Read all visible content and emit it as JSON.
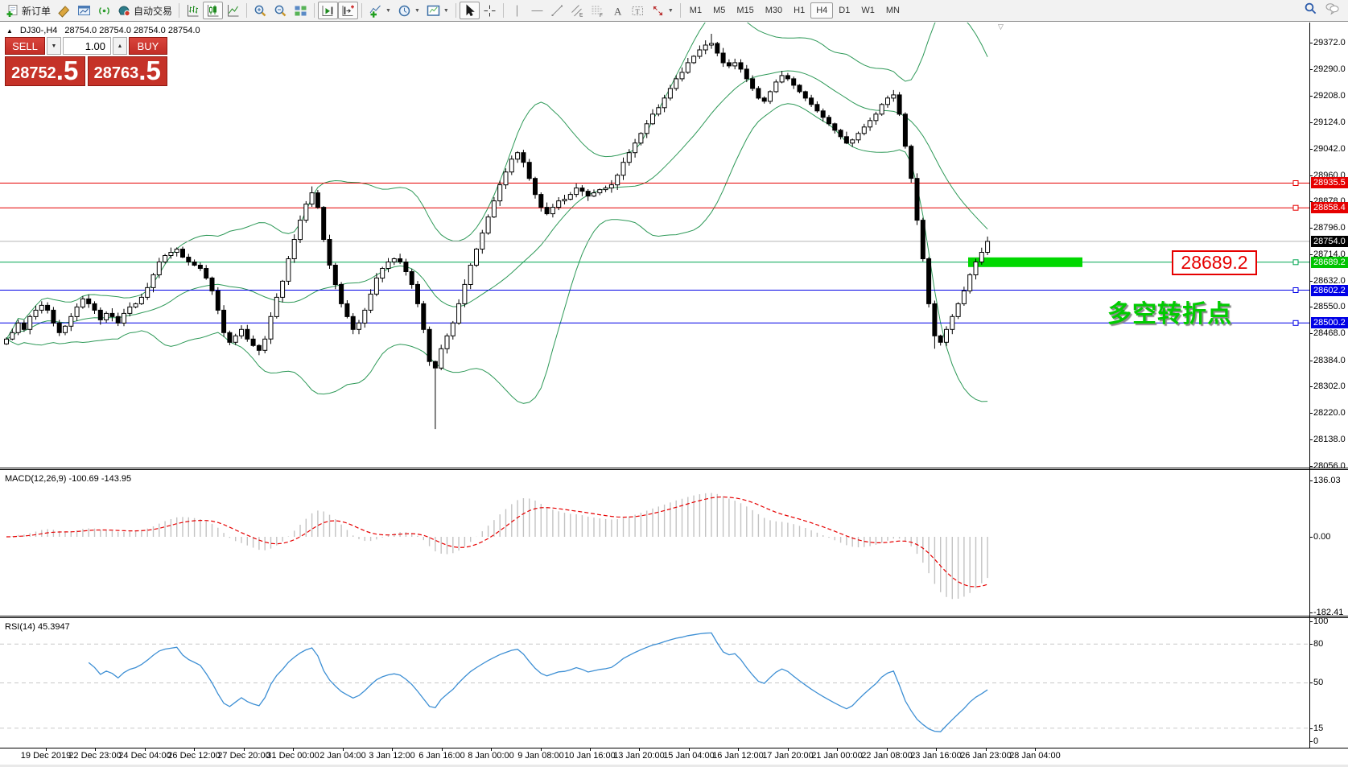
{
  "toolbar": {
    "groups": [
      {
        "items": [
          {
            "name": "new-order",
            "icon": "new-order-icon",
            "label": "新订单"
          },
          {
            "name": "styler",
            "icon": "crayon-icon"
          },
          {
            "name": "profiles",
            "icon": "chart-window-icon"
          },
          {
            "name": "signals",
            "icon": "signal-icon"
          },
          {
            "name": "auto-trading",
            "icon": "autotrade-icon",
            "label": "自动交易"
          }
        ]
      },
      {
        "items": [
          {
            "name": "bar-chart",
            "icon": "bars-icon"
          },
          {
            "name": "candlestick-chart",
            "icon": "candles-icon",
            "pressed": true
          },
          {
            "name": "line-chart",
            "icon": "line-icon"
          }
        ]
      },
      {
        "items": [
          {
            "name": "zoom-in",
            "icon": "zoom-in-icon"
          },
          {
            "name": "zoom-out",
            "icon": "zoom-out-icon"
          },
          {
            "name": "tile-windows",
            "icon": "tile-icon"
          }
        ]
      },
      {
        "items": [
          {
            "name": "auto-scroll",
            "icon": "autoscroll-icon",
            "pressed": true
          },
          {
            "name": "chart-shift",
            "icon": "shift-icon",
            "pressed": true
          }
        ]
      },
      {
        "items": [
          {
            "name": "indicators",
            "icon": "indicators-icon",
            "dropdown": true
          },
          {
            "name": "periods",
            "icon": "clock-icon",
            "dropdown": true
          },
          {
            "name": "templates",
            "icon": "template-icon",
            "dropdown": true
          }
        ]
      },
      {
        "items": [
          {
            "name": "cursor",
            "icon": "cursor-icon",
            "pressed": true
          },
          {
            "name": "crosshair",
            "icon": "crosshair-icon"
          }
        ]
      },
      {
        "items": [
          {
            "name": "vertical-line",
            "icon": "vline-icon"
          },
          {
            "name": "horizontal-line",
            "icon": "hline-icon"
          },
          {
            "name": "trendline",
            "icon": "trendline-icon"
          },
          {
            "name": "equidistant-channel",
            "icon": "channel-icon"
          },
          {
            "name": "fibonacci",
            "icon": "fibo-icon"
          },
          {
            "name": "text",
            "icon": "text-icon"
          },
          {
            "name": "text-label",
            "icon": "label-icon"
          },
          {
            "name": "arrows",
            "icon": "arrows-icon",
            "dropdown": true
          }
        ]
      }
    ],
    "timeframes": [
      {
        "label": "M1"
      },
      {
        "label": "M5"
      },
      {
        "label": "M15"
      },
      {
        "label": "M30"
      },
      {
        "label": "H1"
      },
      {
        "label": "H4",
        "active": true
      },
      {
        "label": "D1"
      },
      {
        "label": "W1"
      },
      {
        "label": "MN"
      }
    ],
    "right_icons": [
      {
        "name": "search",
        "icon": "search-icon"
      },
      {
        "name": "chat",
        "icon": "chat-icon"
      }
    ]
  },
  "chart": {
    "collapse_glyph": "▲",
    "title": "DJ30-,H4",
    "ohlc": "28754.0 28754.0 28754.0 28754.0"
  },
  "trade_panel": {
    "sell_label": "SELL",
    "buy_label": "BUY",
    "volume": "1.00",
    "spin_down": "▼",
    "spin_up": "▲",
    "sell_price_int": "28752",
    "sell_price_frac": ".5",
    "buy_price_int": "28763",
    "buy_price_frac": ".5"
  },
  "macd": {
    "label": "MACD(12,26,9)",
    "values": "-100.69 -143.95",
    "axis": [
      "136.03",
      "0.00",
      "-182.41"
    ]
  },
  "rsi": {
    "label": "RSI(14)",
    "value": "45.3947",
    "axis": [
      "100",
      "80",
      "50",
      "15",
      "0"
    ]
  },
  "annotations": {
    "level_callout": "28689.2",
    "turning_point": "多空转折点",
    "shift_marker": "▽"
  },
  "chart_data": {
    "type": "candlestick",
    "symbol": "DJ30-",
    "timeframe": "H4",
    "price_range": [
      28050,
      29405
    ],
    "y_ticks": [
      29372.0,
      29290.0,
      29208.0,
      29124.0,
      29042.0,
      28960.0,
      28878.0,
      28796.0,
      28714.0,
      28632.0,
      28550.0,
      28468.0,
      28384.0,
      28302.0,
      28220.0,
      28138.0,
      28056.0
    ],
    "time_labels": [
      "19 Dec 2019",
      "22 Dec 23:00",
      "24 Dec 04:00",
      "26 Dec 12:00",
      "27 Dec 20:00",
      "31 Dec 00:00",
      "2 Jan 04:00",
      "3 Jan 12:00",
      "6 Jan 16:00",
      "8 Jan 00:00",
      "9 Jan 08:00",
      "10 Jan 16:00",
      "13 Jan 20:00",
      "15 Jan 04:00",
      "16 Jan 12:00",
      "17 Jan 20:00",
      "21 Jan 00:00",
      "22 Jan 08:00",
      "23 Jan 16:00",
      "26 Jan 23:00",
      "28 Jan 04:00"
    ],
    "hlines": [
      {
        "price": 28935.5,
        "color": "#e60000",
        "label": "28935.5",
        "label_bg": "#e60000",
        "handle": true
      },
      {
        "price": 28858.4,
        "color": "#e60000",
        "label": "28858.4",
        "label_bg": "#e60000",
        "handle": true
      },
      {
        "price": 28754.0,
        "color": "#b4b4b4",
        "label": "28754.0",
        "label_bg": "#000000",
        "handle": false
      },
      {
        "price": 28689.2,
        "color": "#00a550",
        "label": "28689.2",
        "label_bg": "#00c400",
        "handle": true
      },
      {
        "price": 28602.2,
        "color": "#0000e6",
        "label": "28602.2",
        "label_bg": "#0000e6",
        "handle": true
      },
      {
        "price": 28500.2,
        "color": "#0000e6",
        "label": "28500.2",
        "label_bg": "#0000e6",
        "handle": true
      }
    ],
    "highlight_rect": {
      "price": 28689.2,
      "color": "#00d800"
    },
    "bollinger": {
      "period": 20,
      "deviation": 2,
      "color": "#2e9958"
    },
    "approx_closes": [
      28450,
      28470,
      28500,
      28480,
      28520,
      28540,
      28555,
      28540,
      28500,
      28470,
      28490,
      28520,
      28550,
      28575,
      28560,
      28540,
      28510,
      28530,
      28520,
      28500,
      28530,
      28550,
      28560,
      28580,
      28610,
      28650,
      28690,
      28710,
      28720,
      28730,
      28705,
      28690,
      28680,
      28670,
      28640,
      28600,
      28540,
      28470,
      28440,
      28460,
      28480,
      28450,
      28430,
      28415,
      28450,
      28520,
      28580,
      28630,
      28700,
      28760,
      28820,
      28870,
      28905,
      28860,
      28760,
      28680,
      28620,
      28560,
      28520,
      28480,
      28500,
      28540,
      28590,
      28640,
      28670,
      28690,
      28700,
      28690,
      28660,
      28620,
      28560,
      28480,
      28380,
      28360,
      28420,
      28460,
      28500,
      28560,
      28620,
      28680,
      28730,
      28780,
      28830,
      28880,
      28930,
      28970,
      29010,
      29030,
      29000,
      28950,
      28900,
      28860,
      28840,
      28860,
      28880,
      28885,
      28900,
      28920,
      28910,
      28895,
      28905,
      28915,
      28920,
      28930,
      28960,
      29000,
      29030,
      29060,
      29090,
      29120,
      29150,
      29170,
      29200,
      29230,
      29260,
      29280,
      29310,
      29330,
      29350,
      29365,
      29370,
      29340,
      29310,
      29300,
      29310,
      29290,
      29260,
      29230,
      29200,
      29190,
      29220,
      29250,
      29270,
      29260,
      29240,
      29220,
      29200,
      29180,
      29160,
      29140,
      29120,
      29100,
      29080,
      29060,
      29070,
      29090,
      29110,
      29130,
      29150,
      29180,
      29200,
      29210,
      29150,
      29050,
      28950,
      28820,
      28700,
      28560,
      28460,
      28440,
      28480,
      28520,
      28560,
      28600,
      28650,
      28690,
      28720,
      28754
    ],
    "spikes": [
      {
        "index": 43,
        "low": 28400
      },
      {
        "index": 52,
        "high": 28925
      },
      {
        "index": 73,
        "low": 28170
      },
      {
        "index": 120,
        "high": 29400
      },
      {
        "index": 158,
        "low": 28420
      }
    ]
  }
}
